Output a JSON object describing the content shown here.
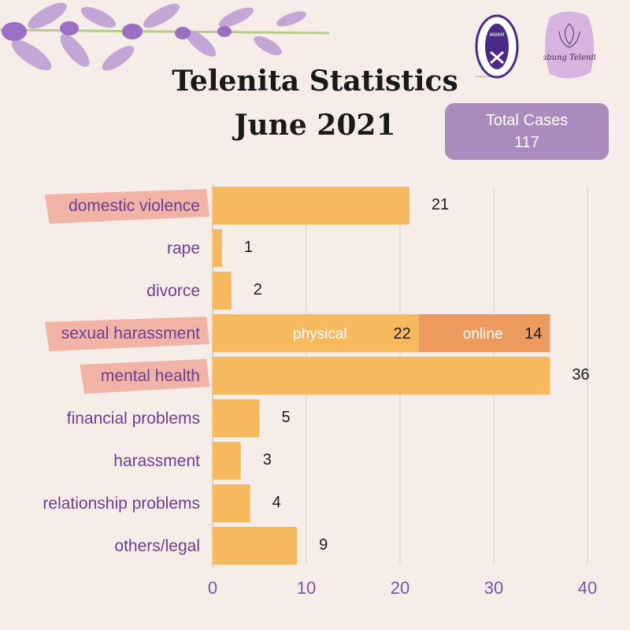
{
  "header": {
    "title_line1": "Telenita Statistics",
    "title_line2": "June 2021",
    "total_label": "Total Cases",
    "total_value": "117",
    "logo_left_text": "AWAM",
    "logo_left_ring_text": "ALL WOMEN'S ACTION SOCIETY",
    "logo_right_text": "Tabung Telenita"
  },
  "colors": {
    "bar": "#f6b95e",
    "bar_online": "#ec9a5e",
    "highlight": "#f0b3a6",
    "label": "#6b3f97",
    "tick": "#7a55a6",
    "box": "#a98bbd"
  },
  "chart_data": {
    "type": "bar",
    "orientation": "horizontal",
    "categories": [
      "domestic violence",
      "rape",
      "divorce",
      "sexual harassment",
      "mental health",
      "financial problems",
      "harassment",
      "relationship problems",
      "others/legal"
    ],
    "values": [
      21,
      1,
      2,
      36,
      36,
      5,
      3,
      4,
      9
    ],
    "highlighted": [
      "domestic violence",
      "sexual harassment",
      "mental health"
    ],
    "stacked": {
      "category": "sexual harassment",
      "segments": [
        {
          "name": "physical",
          "value": 22
        },
        {
          "name": "online",
          "value": 14
        }
      ]
    },
    "xlim": [
      0,
      40
    ],
    "xticks": [
      0,
      10,
      20,
      30,
      40
    ],
    "grid": "vertical"
  }
}
